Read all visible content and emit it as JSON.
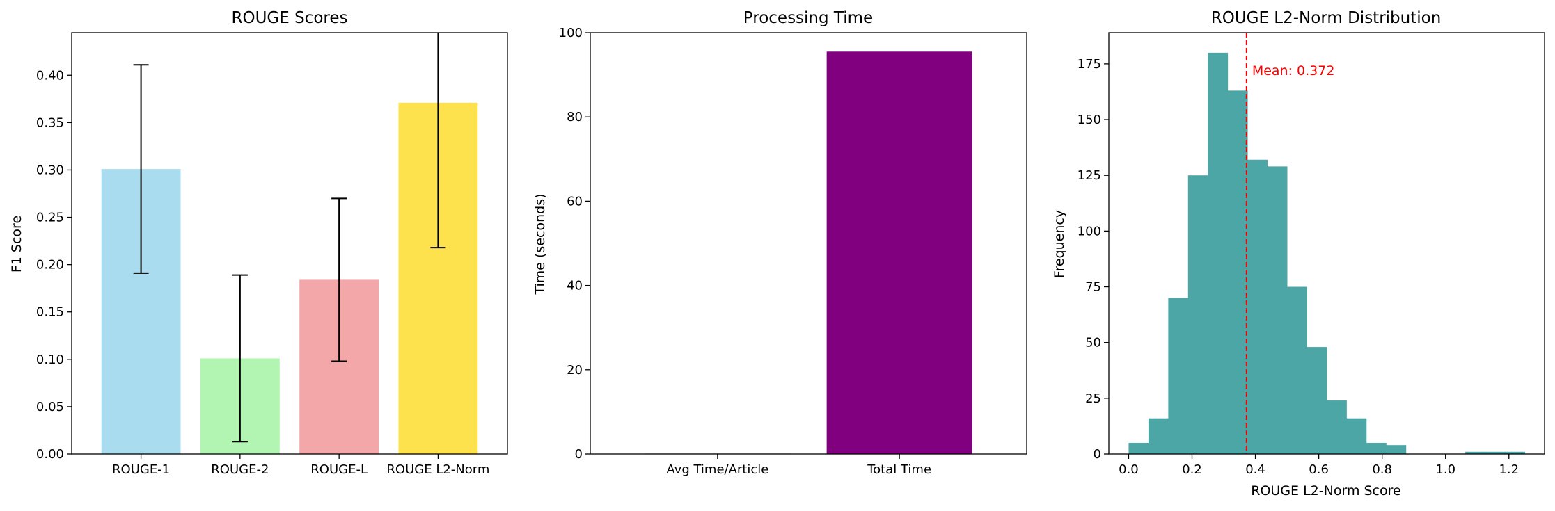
{
  "chart_data": [
    {
      "type": "bar",
      "title": "ROUGE Scores",
      "xlabel": "",
      "ylabel": "F1 Score",
      "categories": [
        "ROUGE-1",
        "ROUGE-2",
        "ROUGE-L",
        "ROUGE L2-Norm"
      ],
      "values": [
        0.301,
        0.101,
        0.184,
        0.371
      ],
      "error": [
        0.11,
        0.088,
        0.086,
        0.153
      ],
      "colors": [
        "#a9dcef",
        "#b2f5b3",
        "#f4a7a8",
        "#fee24d"
      ],
      "ylim": [
        0,
        0.445
      ],
      "yticks": [
        "0.00",
        "0.05",
        "0.10",
        "0.15",
        "0.20",
        "0.25",
        "0.30",
        "0.35",
        "0.40"
      ],
      "grid": false
    },
    {
      "type": "bar",
      "title": "Processing Time",
      "xlabel": "",
      "ylabel": "Time (seconds)",
      "categories": [
        "Avg Time/Article",
        "Total Time"
      ],
      "values": [
        0.095,
        95.5
      ],
      "colors": [
        "#800080",
        "#800080"
      ],
      "ylim": [
        0,
        100
      ],
      "yticks": [
        "0",
        "20",
        "40",
        "60",
        "80",
        "100"
      ],
      "grid": false
    },
    {
      "type": "histogram",
      "title": "ROUGE L2-Norm Distribution",
      "xlabel": "ROUGE L2-Norm Score",
      "ylabel": "Frequency",
      "bin_start": 0.0,
      "bin_width": 0.0625,
      "counts": [
        5,
        16,
        70,
        125,
        180,
        163,
        132,
        129,
        75,
        48,
        24,
        16,
        5,
        4,
        0,
        0,
        0,
        1,
        1,
        1
      ],
      "color": "#4ca6a6",
      "xlim": [
        -0.0625,
        1.3125
      ],
      "ylim": [
        0,
        189
      ],
      "xticks": [
        "0.0",
        "0.2",
        "0.4",
        "0.6",
        "0.8",
        "1.0",
        "1.2"
      ],
      "yticks": [
        "0",
        "25",
        "50",
        "75",
        "100",
        "125",
        "150",
        "175"
      ],
      "mean_line": {
        "value": 0.372,
        "label": "Mean: 0.372",
        "color": "#ff0000"
      },
      "grid": false
    }
  ]
}
